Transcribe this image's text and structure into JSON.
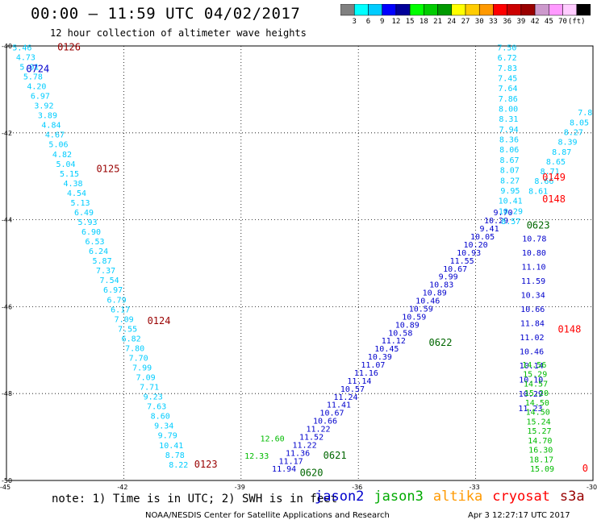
{
  "header": {
    "title": "00:00 – 11:59 UTC 04/02/2017",
    "subtitle": "12 hour collection of altimeter wave heights"
  },
  "colorbar": {
    "colors": [
      "#808080",
      "#00ffff",
      "#00ccff",
      "#0000ff",
      "#000099",
      "#00ff00",
      "#00cc00",
      "#009900",
      "#ffff00",
      "#ffcc00",
      "#ff9900",
      "#ff0000",
      "#cc0000",
      "#990000",
      "#cc99cc",
      "#ff99ff",
      "#ffccff",
      "#000000"
    ],
    "labels": [
      "3",
      "6",
      "9",
      "12",
      "15",
      "18",
      "21",
      "24",
      "27",
      "30",
      "33",
      "36",
      "39",
      "42",
      "45",
      "70",
      "(ft)"
    ]
  },
  "map": {
    "lat_ticks": [
      "-40",
      "-42",
      "-44",
      "-46",
      "-48",
      "-50"
    ],
    "lon_ticks": [
      "-45",
      "-42",
      "-39",
      "-36",
      "-33",
      "-30"
    ],
    "bounds": {
      "lon_min": -45,
      "lon_max": -30,
      "lat_min": -50,
      "lat_max": -40
    },
    "grid": "dotted"
  },
  "tracks": [
    {
      "satellite": "cryosat",
      "color": "#00ccff",
      "start": [
        -44.6,
        -40.1
      ],
      "end": [
        -40.6,
        -49.7
      ],
      "values": [
        "5.46",
        "4.73",
        "5.01",
        "5.78",
        "4.20",
        "6.97",
        "3.92",
        "3.89",
        "4.84",
        "4.67",
        "5.06",
        "4.82",
        "5.04",
        "5.15",
        "4.38",
        "4.54",
        "5.13",
        "6.49",
        "5.93",
        "6.90",
        "6.53",
        "6.24",
        "5.87",
        "7.37",
        "7.54",
        "6.97",
        "6.79",
        "6.17",
        "7.09",
        "7.55",
        "6.82",
        "7.80",
        "7.70",
        "7.99",
        "7.09",
        "7.71",
        "9.23",
        "7.63",
        "8.60",
        "9.34",
        "9.79",
        "10.41",
        "8.78",
        "8.22"
      ]
    },
    {
      "satellite": "jason2",
      "color": "#0000cc",
      "start": [
        -37.9,
        -49.8
      ],
      "end": [
        -32.3,
        -43.9
      ],
      "values": [
        "11.94",
        "11.17",
        "11.36",
        "11.22",
        "11.52",
        "11.22",
        "10.66",
        "10.67",
        "11.41",
        "11.24",
        "10.57",
        "11.14",
        "11.16",
        "11.07",
        "10.39",
        "10.45",
        "11.12",
        "10.58",
        "10.89",
        "10.59",
        "10.59",
        "10.46",
        "10.89",
        "10.83",
        "9.99",
        "10.67",
        "11.55",
        "10.93",
        "10.20",
        "10.05",
        "9.41",
        "10.29",
        "9.70"
      ]
    },
    {
      "satellite": "jason3",
      "color": "#00bb00",
      "start": [
        -38.6,
        -49.5
      ],
      "end": [
        -38.2,
        -49.1
      ],
      "values": [
        "12.33",
        "12.60"
      ]
    },
    {
      "satellite": "cryosat",
      "color": "#00ccff",
      "start": [
        -32.2,
        -40.1
      ],
      "end": [
        -32.1,
        -44.1
      ],
      "values": [
        "7.50",
        "6.72",
        "7.83",
        "7.45",
        "7.64",
        "7.86",
        "8.00",
        "8.31",
        "7.94",
        "8.36",
        "8.06",
        "8.67",
        "8.07",
        "8.27",
        "9.95",
        "10.41",
        "10.29",
        "8.57"
      ]
    },
    {
      "satellite": "jason2",
      "color": "#0000cc",
      "start": [
        -31.5,
        -44.5
      ],
      "end": [
        -31.6,
        -48.4
      ],
      "values": [
        "10.78",
        "10.80",
        "11.10",
        "11.59",
        "10.34",
        "10.66",
        "11.84",
        "11.02",
        "10.46",
        "10.14",
        "10.10",
        "10.29",
        "11.23"
      ]
    },
    {
      "satellite": "jason3",
      "color": "#00bb00",
      "start": [
        -31.5,
        -47.4
      ],
      "end": [
        -31.3,
        -49.8
      ],
      "values": [
        "14.56",
        "15.29",
        "14.57",
        "15.20",
        "14.50",
        "14.50",
        "15.24",
        "15.27",
        "14.70",
        "16.30",
        "18.17",
        "15.09"
      ]
    },
    {
      "satellite": "cryosat",
      "color": "#00ccff",
      "start": [
        -30.2,
        -41.6
      ],
      "end": [
        -31.4,
        -43.4
      ],
      "values": [
        "7.8",
        "8.05",
        "8.27",
        "8.39",
        "8.87",
        "8.65",
        "8.71",
        "8.66",
        "8.61"
      ]
    }
  ],
  "time_labels": [
    {
      "text": "0126",
      "color": "#990000",
      "lon": -43.4,
      "lat": -40.1
    },
    {
      "text": "0724",
      "color": "#0000cc",
      "lon": -44.2,
      "lat": -40.6
    },
    {
      "text": "0125",
      "color": "#990000",
      "lon": -42.4,
      "lat": -42.9
    },
    {
      "text": "0124",
      "color": "#990000",
      "lon": -41.1,
      "lat": -46.4
    },
    {
      "text": "0123",
      "color": "#990000",
      "lon": -39.9,
      "lat": -49.7
    },
    {
      "text": "0620",
      "color": "#006600",
      "lon": -37.2,
      "lat": -49.9
    },
    {
      "text": "0621",
      "color": "#006600",
      "lon": -36.6,
      "lat": -49.5
    },
    {
      "text": "0622",
      "color": "#006600",
      "lon": -33.9,
      "lat": -46.9
    },
    {
      "text": "0623",
      "color": "#006600",
      "lon": -31.4,
      "lat": -44.2
    },
    {
      "text": "0149",
      "color": "#ff0000",
      "lon": -31.0,
      "lat": -43.1
    },
    {
      "text": "0148",
      "color": "#ff0000",
      "lon": -31.0,
      "lat": -43.6
    },
    {
      "text": "0148",
      "color": "#ff0000",
      "lon": -30.6,
      "lat": -46.6
    },
    {
      "text": "0",
      "color": "#ff0000",
      "lon": -30.2,
      "lat": -49.8
    }
  ],
  "footer": {
    "note": "note: 1) Time is in UTC; 2) SWH is in feet",
    "satellites": [
      {
        "name": "jason2",
        "color": "#0000cc"
      },
      {
        "name": "jason3",
        "color": "#00aa00"
      },
      {
        "name": "altika",
        "color": "#ff9900"
      },
      {
        "name": "cryosat",
        "color": "#ff0000"
      },
      {
        "name": "s3a",
        "color": "#990000"
      }
    ],
    "credit": "NOAA/NESDIS Center for Satellite Applications and Research",
    "timestamp": "Apr  3 12:27:17 UTC 2017"
  }
}
